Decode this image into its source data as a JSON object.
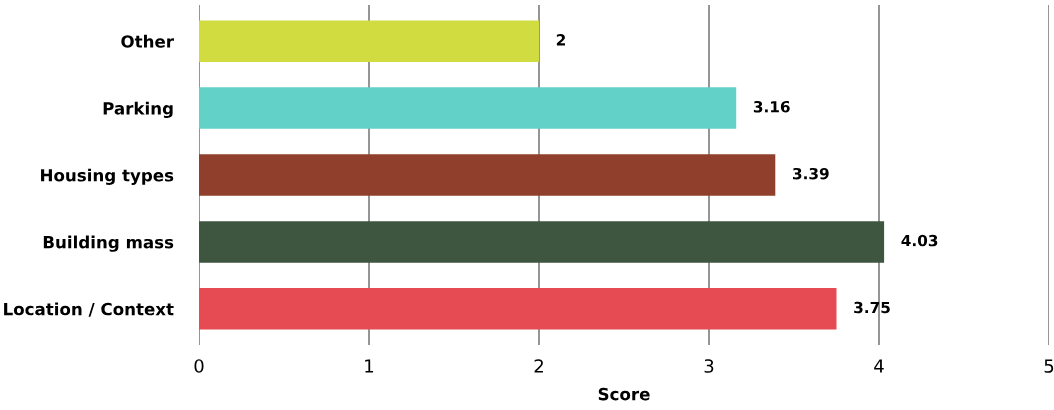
{
  "chart_data": {
    "type": "bar",
    "orientation": "horizontal",
    "categories": [
      "Other",
      "Parking",
      "Housing types",
      "Building mass",
      "Location / Context"
    ],
    "values": [
      2,
      3.16,
      3.39,
      4.03,
      3.75
    ],
    "colors": [
      "#d0dc40",
      "#62d1c8",
      "#8f3f2b",
      "#3e5540",
      "#e64a52"
    ],
    "xlabel": "Score",
    "xlim": [
      0,
      5
    ],
    "xticks": [
      0,
      1,
      2,
      3,
      4,
      5
    ],
    "grid": "x",
    "data_labels": true
  }
}
